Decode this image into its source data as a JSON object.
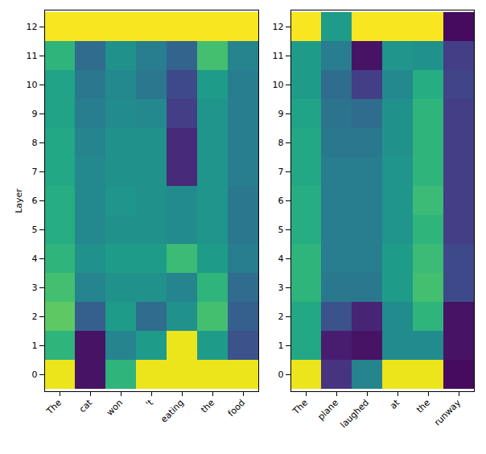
{
  "chart_data": [
    {
      "type": "heatmap",
      "categories": [
        "The",
        "cat",
        "won",
        "'t",
        "eating",
        "the",
        "food"
      ],
      "y": [
        0,
        1,
        2,
        3,
        4,
        5,
        6,
        7,
        8,
        9,
        10,
        11,
        12
      ],
      "ylabel": "Layer",
      "color": "viridis",
      "zlim": [
        0.0,
        1.0
      ],
      "values": [
        [
          0.97,
          0.05,
          0.65,
          0.97,
          0.97,
          0.97,
          0.97
        ],
        [
          0.65,
          0.05,
          0.45,
          0.55,
          0.97,
          0.55,
          0.25
        ],
        [
          0.75,
          0.3,
          0.55,
          0.35,
          0.5,
          0.7,
          0.3
        ],
        [
          0.7,
          0.45,
          0.5,
          0.5,
          0.45,
          0.65,
          0.35
        ],
        [
          0.65,
          0.5,
          0.55,
          0.55,
          0.68,
          0.55,
          0.42
        ],
        [
          0.62,
          0.47,
          0.5,
          0.5,
          0.48,
          0.52,
          0.4
        ],
        [
          0.62,
          0.47,
          0.52,
          0.5,
          0.48,
          0.52,
          0.4
        ],
        [
          0.6,
          0.47,
          0.5,
          0.5,
          0.12,
          0.52,
          0.42
        ],
        [
          0.6,
          0.45,
          0.5,
          0.5,
          0.12,
          0.52,
          0.42
        ],
        [
          0.58,
          0.42,
          0.48,
          0.47,
          0.18,
          0.52,
          0.42
        ],
        [
          0.58,
          0.4,
          0.47,
          0.4,
          0.22,
          0.55,
          0.42
        ],
        [
          0.65,
          0.35,
          0.5,
          0.42,
          0.32,
          0.7,
          0.45
        ],
        [
          0.99,
          0.99,
          0.99,
          0.99,
          0.99,
          0.99,
          0.99
        ]
      ]
    },
    {
      "type": "heatmap",
      "categories": [
        "The",
        "plane",
        "laughed",
        "at",
        "the",
        "runway"
      ],
      "y": [
        0,
        1,
        2,
        3,
        4,
        5,
        6,
        7,
        8,
        9,
        10,
        11,
        12
      ],
      "color": "viridis",
      "zlim": [
        0.0,
        1.0
      ],
      "values": [
        [
          0.97,
          0.15,
          0.45,
          0.97,
          0.97,
          0.03
        ],
        [
          0.6,
          0.08,
          0.05,
          0.48,
          0.48,
          0.05
        ],
        [
          0.6,
          0.25,
          0.1,
          0.48,
          0.65,
          0.05
        ],
        [
          0.65,
          0.4,
          0.4,
          0.55,
          0.7,
          0.22
        ],
        [
          0.65,
          0.42,
          0.42,
          0.55,
          0.68,
          0.22
        ],
        [
          0.62,
          0.42,
          0.42,
          0.52,
          0.65,
          0.18
        ],
        [
          0.62,
          0.42,
          0.42,
          0.52,
          0.68,
          0.18
        ],
        [
          0.6,
          0.42,
          0.42,
          0.52,
          0.65,
          0.18
        ],
        [
          0.6,
          0.4,
          0.4,
          0.5,
          0.65,
          0.18
        ],
        [
          0.58,
          0.38,
          0.35,
          0.5,
          0.65,
          0.18
        ],
        [
          0.55,
          0.35,
          0.18,
          0.47,
          0.62,
          0.2
        ],
        [
          0.55,
          0.42,
          0.05,
          0.52,
          0.5,
          0.18
        ],
        [
          0.99,
          0.55,
          0.99,
          0.99,
          0.99,
          0.03
        ]
      ]
    }
  ]
}
